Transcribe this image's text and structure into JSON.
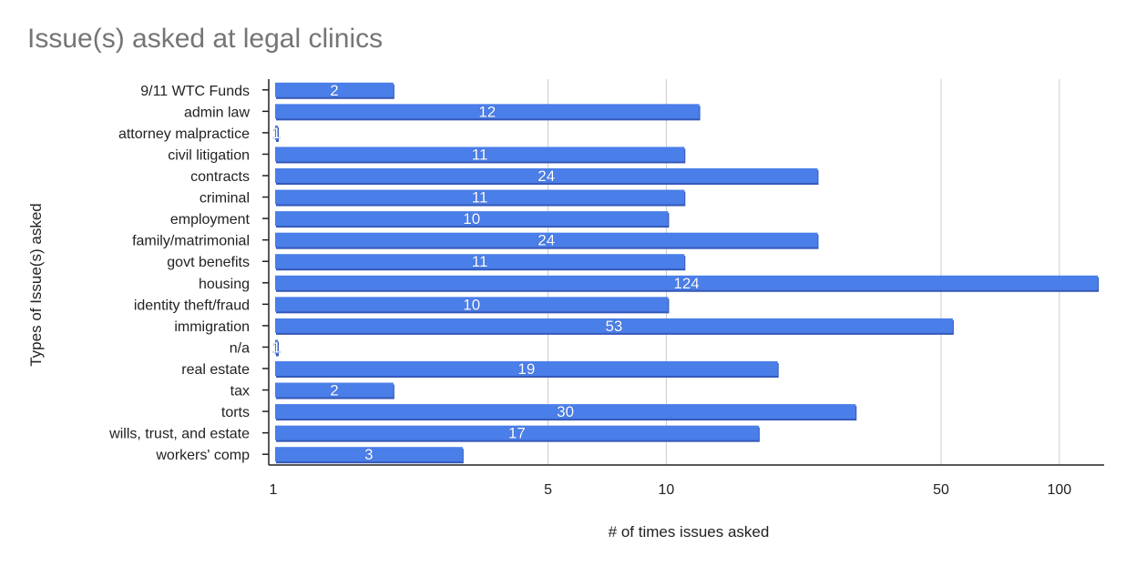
{
  "chart_data": {
    "type": "bar",
    "orientation": "horizontal",
    "title": "Issue(s) asked at legal clinics",
    "xlabel": "# of times issues asked",
    "ylabel": "Types of Issue(s) asked",
    "x_scale": "log",
    "xlim": [
      1,
      130
    ],
    "x_ticks": [
      1,
      5,
      10,
      50,
      100
    ],
    "grid": true,
    "legend": "none",
    "bar_color": "#4a7ee8",
    "bar_shadow_color": "#3558b8",
    "categories": [
      "9/11 WTC Funds",
      "admin law",
      "attorney malpractice",
      "civil litigation",
      "contracts",
      "criminal",
      "employment",
      "family/matrimonial",
      "govt benefits",
      "housing",
      "identity theft/fraud",
      "immigration",
      "n/a",
      "real estate",
      "tax",
      "torts",
      "wills, trust, and estate",
      "workers' comp"
    ],
    "values": [
      2,
      12,
      1,
      11,
      24,
      11,
      10,
      24,
      11,
      124,
      10,
      53,
      1,
      19,
      2,
      30,
      17,
      3
    ]
  }
}
